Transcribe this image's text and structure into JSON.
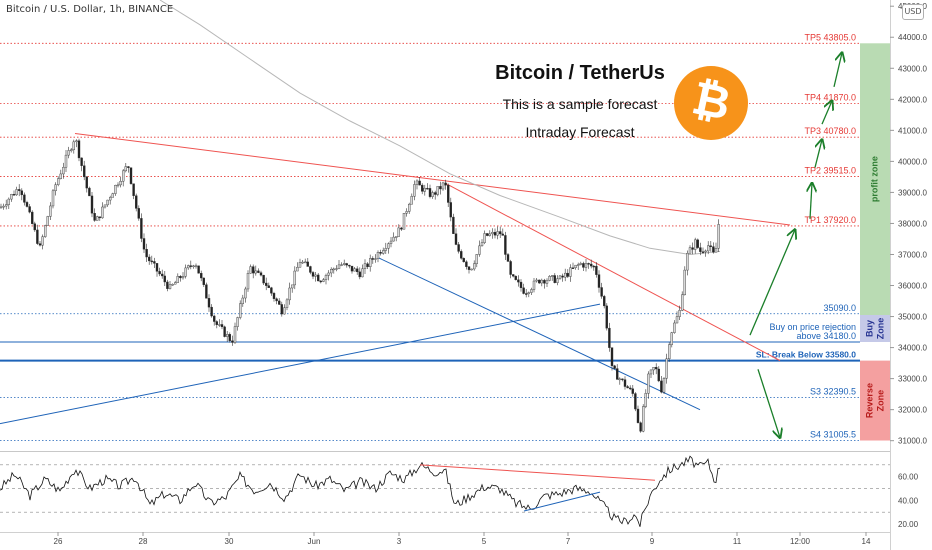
{
  "header": {
    "title": "Bitcoin / U.S. Dollar, 1h, BINANCE",
    "currency": "USD"
  },
  "overlay": {
    "title": "Bitcoin / TetherUs",
    "subtitle": "This is a sample forecast",
    "subtitle2": "Intraday Forecast",
    "logo_symbol": "₿",
    "logo_color": "#f7931a"
  },
  "chart_data": {
    "type": "candlestick",
    "x_ticks": [
      "26",
      "28",
      "30",
      "Jun",
      "3",
      "5",
      "7",
      "9",
      "11",
      "12:00",
      "14"
    ],
    "y_ticks": [
      31000,
      32000,
      33000,
      34000,
      35000,
      36000,
      37000,
      38000,
      39000,
      40000,
      41000,
      42000,
      43000,
      44000,
      45000
    ],
    "y_tick_labels": [
      "31000.0",
      "32000.0",
      "33000.0",
      "34000.0",
      "35000.0",
      "36000.0",
      "37000.0",
      "38000.0",
      "39000.0",
      "40000.0",
      "41000.0",
      "42000.0",
      "43000.0",
      "44000.0",
      "45000.0"
    ],
    "ylim": [
      30700,
      45200
    ],
    "price_path": [
      {
        "x": 0,
        "y": 38500
      },
      {
        "x": 20,
        "y": 39200
      },
      {
        "x": 40,
        "y": 37200
      },
      {
        "x": 55,
        "y": 39200
      },
      {
        "x": 75,
        "y": 40800
      },
      {
        "x": 95,
        "y": 38000
      },
      {
        "x": 110,
        "y": 38900
      },
      {
        "x": 128,
        "y": 39900
      },
      {
        "x": 145,
        "y": 37000
      },
      {
        "x": 170,
        "y": 35900
      },
      {
        "x": 195,
        "y": 36800
      },
      {
        "x": 215,
        "y": 34800
      },
      {
        "x": 232,
        "y": 34200
      },
      {
        "x": 250,
        "y": 36600
      },
      {
        "x": 265,
        "y": 36100
      },
      {
        "x": 282,
        "y": 35200
      },
      {
        "x": 300,
        "y": 36800
      },
      {
        "x": 320,
        "y": 36200
      },
      {
        "x": 340,
        "y": 36700
      },
      {
        "x": 360,
        "y": 36400
      },
      {
        "x": 385,
        "y": 37300
      },
      {
        "x": 400,
        "y": 37800
      },
      {
        "x": 415,
        "y": 39300
      },
      {
        "x": 432,
        "y": 38900
      },
      {
        "x": 445,
        "y": 39300
      },
      {
        "x": 455,
        "y": 37300
      },
      {
        "x": 470,
        "y": 36500
      },
      {
        "x": 485,
        "y": 37600
      },
      {
        "x": 502,
        "y": 37700
      },
      {
        "x": 510,
        "y": 36300
      },
      {
        "x": 525,
        "y": 35800
      },
      {
        "x": 540,
        "y": 36200
      },
      {
        "x": 560,
        "y": 36200
      },
      {
        "x": 580,
        "y": 36700
      },
      {
        "x": 595,
        "y": 36600
      },
      {
        "x": 605,
        "y": 35200
      },
      {
        "x": 612,
        "y": 33300
      },
      {
        "x": 625,
        "y": 32800
      },
      {
        "x": 633,
        "y": 32500
      },
      {
        "x": 640,
        "y": 31300
      },
      {
        "x": 648,
        "y": 33000
      },
      {
        "x": 655,
        "y": 33400
      },
      {
        "x": 662,
        "y": 32600
      },
      {
        "x": 670,
        "y": 34400
      },
      {
        "x": 680,
        "y": 35200
      },
      {
        "x": 686,
        "y": 36900
      },
      {
        "x": 695,
        "y": 37400
      },
      {
        "x": 700,
        "y": 37100
      },
      {
        "x": 708,
        "y": 37300
      },
      {
        "x": 715,
        "y": 36900
      },
      {
        "x": 720,
        "y": 38400
      }
    ],
    "moving_average": [
      {
        "x": 160,
        "y": 45200
      },
      {
        "x": 200,
        "y": 44400
      },
      {
        "x": 250,
        "y": 43300
      },
      {
        "x": 300,
        "y": 42200
      },
      {
        "x": 350,
        "y": 41300
      },
      {
        "x": 400,
        "y": 40500
      },
      {
        "x": 450,
        "y": 39600
      },
      {
        "x": 500,
        "y": 38900
      },
      {
        "x": 560,
        "y": 38200
      },
      {
        "x": 610,
        "y": 37600
      },
      {
        "x": 650,
        "y": 37200
      },
      {
        "x": 690,
        "y": 37000
      },
      {
        "x": 720,
        "y": 37100
      }
    ],
    "levels": [
      {
        "name": "TP5",
        "label": "TP5 43805.0",
        "value": 43805.0,
        "color": "#e53935"
      },
      {
        "name": "TP4",
        "label": "TP4 41870.0",
        "value": 41870.0,
        "color": "#e53935"
      },
      {
        "name": "TP3",
        "label": "TP3 40780.0",
        "value": 40780.0,
        "color": "#e53935"
      },
      {
        "name": "TP2",
        "label": "TP2 39515.0",
        "value": 39515.0,
        "color": "#e53935"
      },
      {
        "name": "TP1",
        "label": "TP1 37920.0",
        "value": 37920.0,
        "color": "#e53935"
      },
      {
        "name": "L35090",
        "label": "35090.0",
        "value": 35090.0,
        "color": "#1e63b8"
      },
      {
        "name": "BUY",
        "label": "above 34180.0",
        "value": 34180.0,
        "color": "#1e63b8"
      },
      {
        "name": "SL",
        "label": "SL: Break Below 33580.0",
        "value": 33580.0,
        "color": "#1e63b8"
      },
      {
        "name": "S3",
        "label": "S3 32390.5",
        "value": 32390.5,
        "color": "#1e63b8"
      },
      {
        "name": "S4",
        "label": "S4 31005.5",
        "value": 31005.5,
        "color": "#1e63b8"
      }
    ],
    "buy_note": "Buy on price rejection",
    "zones": [
      {
        "name": "profit zone",
        "from": 33580,
        "to": 43805,
        "visible_from": 35050,
        "color": "#b9dbb3",
        "text_color": "#2e7d32"
      },
      {
        "name": "Buy Zone",
        "from": 34180,
        "to": 35050,
        "color": "#c5c9e8",
        "text_color": "#283593"
      },
      {
        "name": "Reverse Zone",
        "from": 31005.5,
        "to": 33580,
        "color": "#f4a0a0",
        "text_color": "#b71c1c"
      }
    ],
    "rsi": {
      "ticks": [
        20,
        40,
        60
      ],
      "tick_labels": [
        "20.00",
        "40.00",
        "60.00"
      ],
      "levels": [
        70,
        50,
        30
      ],
      "ylim": [
        15,
        80
      ],
      "path": [
        {
          "x": 0,
          "y": 50
        },
        {
          "x": 15,
          "y": 62
        },
        {
          "x": 30,
          "y": 44
        },
        {
          "x": 45,
          "y": 58
        },
        {
          "x": 60,
          "y": 48
        },
        {
          "x": 75,
          "y": 67
        },
        {
          "x": 90,
          "y": 50
        },
        {
          "x": 105,
          "y": 58
        },
        {
          "x": 120,
          "y": 52
        },
        {
          "x": 135,
          "y": 60
        },
        {
          "x": 150,
          "y": 36
        },
        {
          "x": 165,
          "y": 46
        },
        {
          "x": 180,
          "y": 40
        },
        {
          "x": 195,
          "y": 55
        },
        {
          "x": 210,
          "y": 38
        },
        {
          "x": 225,
          "y": 42
        },
        {
          "x": 240,
          "y": 60
        },
        {
          "x": 255,
          "y": 48
        },
        {
          "x": 270,
          "y": 55
        },
        {
          "x": 285,
          "y": 42
        },
        {
          "x": 300,
          "y": 62
        },
        {
          "x": 315,
          "y": 52
        },
        {
          "x": 330,
          "y": 58
        },
        {
          "x": 345,
          "y": 48
        },
        {
          "x": 360,
          "y": 56
        },
        {
          "x": 375,
          "y": 50
        },
        {
          "x": 390,
          "y": 63
        },
        {
          "x": 405,
          "y": 58
        },
        {
          "x": 420,
          "y": 70
        },
        {
          "x": 435,
          "y": 64
        },
        {
          "x": 445,
          "y": 66
        },
        {
          "x": 455,
          "y": 36
        },
        {
          "x": 470,
          "y": 44
        },
        {
          "x": 485,
          "y": 52
        },
        {
          "x": 500,
          "y": 50
        },
        {
          "x": 515,
          "y": 38
        },
        {
          "x": 530,
          "y": 33
        },
        {
          "x": 545,
          "y": 44
        },
        {
          "x": 560,
          "y": 46
        },
        {
          "x": 575,
          "y": 50
        },
        {
          "x": 590,
          "y": 48
        },
        {
          "x": 605,
          "y": 34
        },
        {
          "x": 615,
          "y": 24
        },
        {
          "x": 625,
          "y": 22
        },
        {
          "x": 635,
          "y": 28
        },
        {
          "x": 640,
          "y": 20
        },
        {
          "x": 650,
          "y": 44
        },
        {
          "x": 660,
          "y": 58
        },
        {
          "x": 670,
          "y": 66
        },
        {
          "x": 680,
          "y": 70
        },
        {
          "x": 690,
          "y": 74
        },
        {
          "x": 700,
          "y": 68
        },
        {
          "x": 708,
          "y": 72
        },
        {
          "x": 715,
          "y": 56
        },
        {
          "x": 720,
          "y": 70
        }
      ]
    }
  }
}
